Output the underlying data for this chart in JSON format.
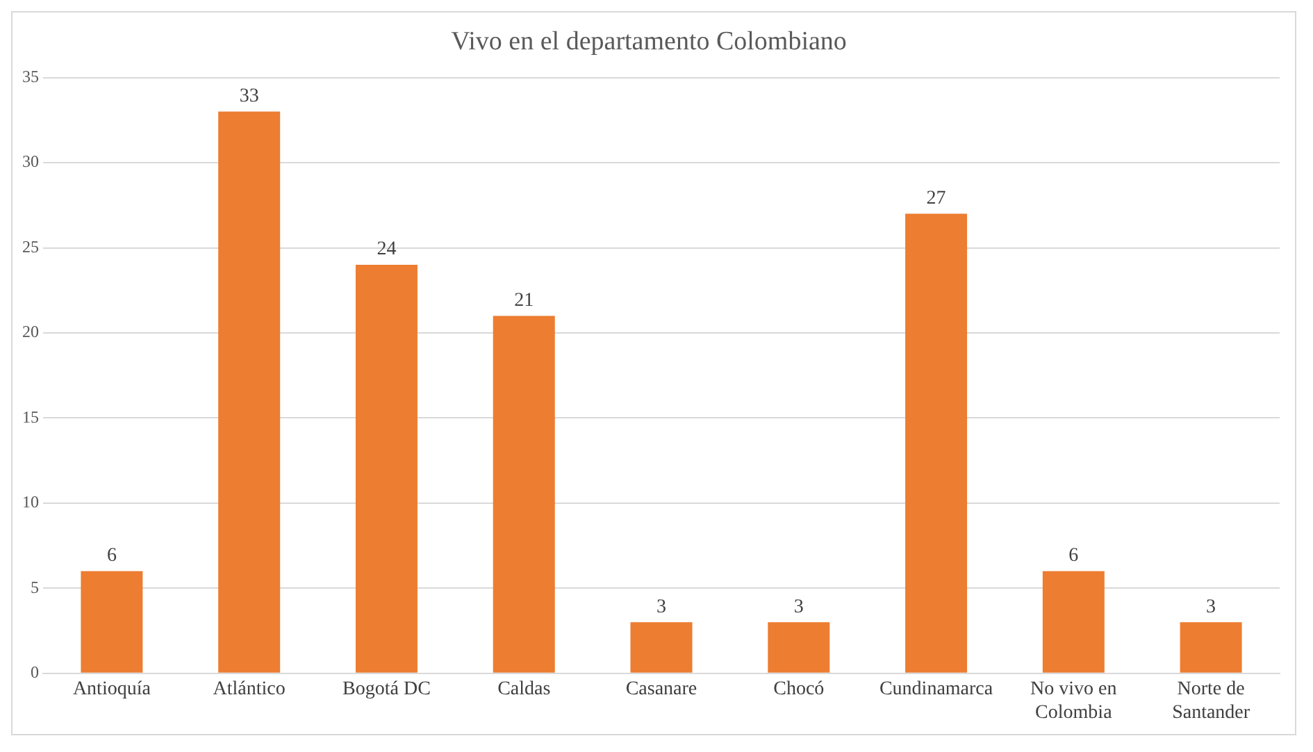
{
  "chart_data": {
    "type": "bar",
    "title": "Vivo en el departamento Colombiano",
    "categories": [
      "Antioquía",
      "Atlántico",
      "Bogotá DC",
      "Caldas",
      "Casanare",
      "Chocó",
      "Cundinamarca",
      "No vivo en Colombia",
      "Norte de Santander"
    ],
    "values": [
      6,
      33,
      24,
      21,
      3,
      3,
      27,
      6,
      3
    ],
    "color": "#ed7d31",
    "ylim": [
      0,
      35
    ],
    "yticks": [
      0,
      5,
      10,
      15,
      20,
      25,
      30,
      35
    ],
    "grid": "y",
    "data_labels": true,
    "legend": false
  }
}
